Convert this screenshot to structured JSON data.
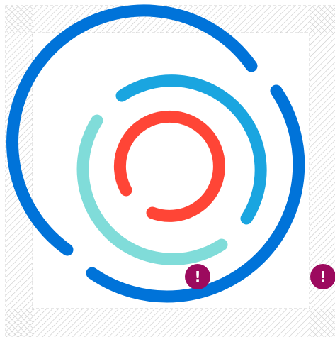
{
  "badges": [
    {
      "label": "!"
    },
    {
      "label": "!"
    }
  ]
}
